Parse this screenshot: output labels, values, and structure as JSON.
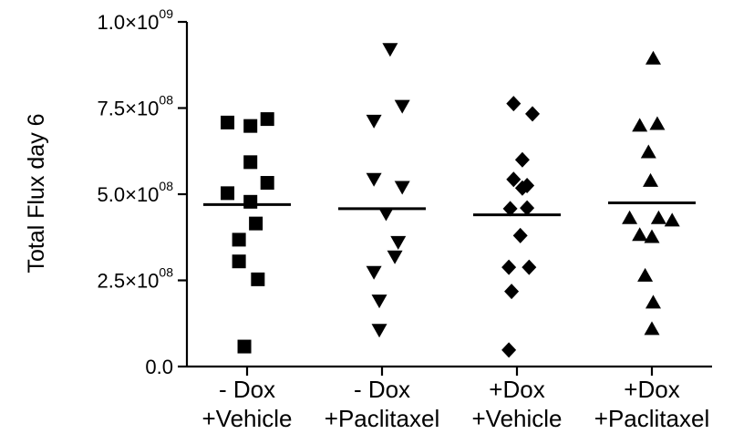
{
  "chart_data": {
    "type": "scatter",
    "ylabel": "Total Flux day 6",
    "ylim": [
      0,
      1000000000
    ],
    "grid": false,
    "y_ticks": [
      {
        "value": 0,
        "mantissa": "0.0",
        "times": "",
        "exponent": ""
      },
      {
        "value": 250000000,
        "mantissa": "2.5",
        "times": "×10",
        "exponent": "08"
      },
      {
        "value": 500000000,
        "mantissa": "5.0",
        "times": "×10",
        "exponent": "08"
      },
      {
        "value": 750000000,
        "mantissa": "7.5",
        "times": "×10",
        "exponent": "08"
      },
      {
        "value": 1000000000,
        "mantissa": "1.0",
        "times": "×10",
        "exponent": "09"
      }
    ],
    "categories": [
      {
        "line1": "- Dox",
        "line2": "+Vehicle"
      },
      {
        "line1": "- Dox",
        "line2": "+Paclitaxel"
      },
      {
        "line1": "+Dox",
        "line2": "+Vehicle"
      },
      {
        "line1": "+Dox",
        "line2": "+Paclitaxel"
      }
    ],
    "series": [
      {
        "marker": "square",
        "mean": 470000000,
        "points": [
          {
            "offset": -0.29,
            "value": 708000000
          },
          {
            "offset": 0.05,
            "value": 698000000
          },
          {
            "offset": 0.3,
            "value": 718000000
          },
          {
            "offset": 0.05,
            "value": 593000000
          },
          {
            "offset": 0.3,
            "value": 533000000
          },
          {
            "offset": -0.29,
            "value": 503000000
          },
          {
            "offset": 0.05,
            "value": 478000000
          },
          {
            "offset": 0.13,
            "value": 415000000
          },
          {
            "offset": -0.12,
            "value": 368000000
          },
          {
            "offset": -0.12,
            "value": 305000000
          },
          {
            "offset": 0.16,
            "value": 253000000
          },
          {
            "offset": -0.04,
            "value": 58000000
          }
        ]
      },
      {
        "marker": "triangle-down",
        "mean": 458000000,
        "points": [
          {
            "offset": 0.12,
            "value": 920000000
          },
          {
            "offset": 0.3,
            "value": 755000000
          },
          {
            "offset": -0.12,
            "value": 712000000
          },
          {
            "offset": -0.12,
            "value": 543000000
          },
          {
            "offset": 0.3,
            "value": 520000000
          },
          {
            "offset": 0.06,
            "value": 443000000
          },
          {
            "offset": 0.24,
            "value": 360000000
          },
          {
            "offset": 0.19,
            "value": 318000000
          },
          {
            "offset": -0.12,
            "value": 273000000
          },
          {
            "offset": -0.04,
            "value": 190000000
          },
          {
            "offset": -0.04,
            "value": 105000000
          }
        ]
      },
      {
        "marker": "diamond",
        "mean": 440000000,
        "points": [
          {
            "offset": -0.05,
            "value": 763000000
          },
          {
            "offset": 0.23,
            "value": 733000000
          },
          {
            "offset": 0.08,
            "value": 600000000
          },
          {
            "offset": -0.05,
            "value": 543000000
          },
          {
            "offset": 0.08,
            "value": 518000000
          },
          {
            "offset": 0.15,
            "value": 525000000
          },
          {
            "offset": -0.1,
            "value": 458000000
          },
          {
            "offset": 0.15,
            "value": 460000000
          },
          {
            "offset": 0.05,
            "value": 380000000
          },
          {
            "offset": -0.12,
            "value": 288000000
          },
          {
            "offset": 0.18,
            "value": 288000000
          },
          {
            "offset": -0.08,
            "value": 218000000
          },
          {
            "offset": -0.12,
            "value": 48000000
          }
        ]
      },
      {
        "marker": "triangle-up",
        "mean": 475000000,
        "points": [
          {
            "offset": 0.02,
            "value": 895000000
          },
          {
            "offset": -0.18,
            "value": 700000000
          },
          {
            "offset": 0.08,
            "value": 705000000
          },
          {
            "offset": -0.05,
            "value": 623000000
          },
          {
            "offset": -0.02,
            "value": 540000000
          },
          {
            "offset": -0.33,
            "value": 432000000
          },
          {
            "offset": 0.1,
            "value": 432000000
          },
          {
            "offset": -0.18,
            "value": 383000000
          },
          {
            "offset": 0.0,
            "value": 377000000
          },
          {
            "offset": 0.3,
            "value": 425000000
          },
          {
            "offset": -0.1,
            "value": 265000000
          },
          {
            "offset": 0.02,
            "value": 187000000
          },
          {
            "offset": 0.0,
            "value": 110000000
          }
        ]
      }
    ]
  }
}
